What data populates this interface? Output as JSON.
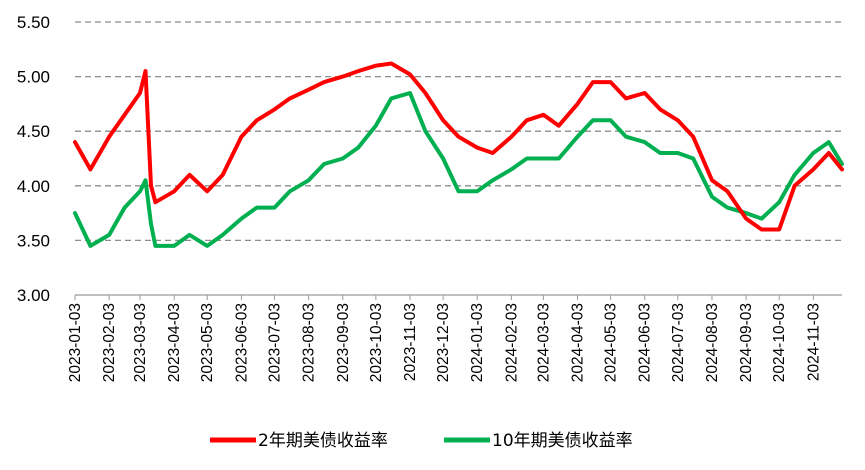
{
  "chart_data": {
    "type": "line",
    "title": "",
    "xlabel": "",
    "ylabel": "",
    "ylim": [
      3.0,
      5.5
    ],
    "y_ticks": [
      "3.00",
      "3.50",
      "4.00",
      "4.50",
      "5.00",
      "5.50"
    ],
    "grid": "horizontal dashed",
    "legend_position": "bottom",
    "x": [
      "2023-01-03",
      "2023-01-17",
      "2023-02-03",
      "2023-02-17",
      "2023-03-03",
      "2023-03-08",
      "2023-03-13",
      "2023-03-17",
      "2023-04-03",
      "2023-04-17",
      "2023-05-03",
      "2023-05-17",
      "2023-06-03",
      "2023-06-17",
      "2023-07-03",
      "2023-07-17",
      "2023-08-03",
      "2023-08-17",
      "2023-09-03",
      "2023-09-17",
      "2023-10-03",
      "2023-10-17",
      "2023-11-03",
      "2023-11-17",
      "2023-12-03",
      "2023-12-17",
      "2024-01-03",
      "2024-01-17",
      "2024-02-03",
      "2024-02-17",
      "2024-03-03",
      "2024-03-17",
      "2024-04-03",
      "2024-04-17",
      "2024-05-03",
      "2024-05-17",
      "2024-06-03",
      "2024-06-17",
      "2024-07-03",
      "2024-07-17",
      "2024-08-03",
      "2024-08-17",
      "2024-09-03",
      "2024-09-17",
      "2024-10-03",
      "2024-10-17",
      "2024-11-03",
      "2024-11-17",
      "2024-11-29"
    ],
    "x_tick_labels": [
      "2023-01-03",
      "2023-02-03",
      "2023-03-03",
      "2023-04-03",
      "2023-05-03",
      "2023-06-03",
      "2023-07-03",
      "2023-08-03",
      "2023-09-03",
      "2023-10-03",
      "2023-11-03",
      "2023-12-03",
      "2024-01-03",
      "2024-02-03",
      "2024-03-03",
      "2024-04-03",
      "2024-05-03",
      "2024-06-03",
      "2024-07-03",
      "2024-08-03",
      "2024-09-03",
      "2024-10-03",
      "2024-11-03"
    ],
    "series": [
      {
        "name": "2年期美债收益率",
        "color": "#ff0000",
        "values": [
          4.4,
          4.15,
          4.45,
          4.65,
          4.85,
          5.05,
          4.0,
          3.85,
          3.95,
          4.1,
          3.95,
          4.1,
          4.45,
          4.6,
          4.7,
          4.8,
          4.88,
          4.95,
          5.0,
          5.05,
          5.1,
          5.12,
          5.02,
          4.85,
          4.6,
          4.45,
          4.35,
          4.3,
          4.45,
          4.6,
          4.65,
          4.55,
          4.75,
          4.95,
          4.95,
          4.8,
          4.85,
          4.7,
          4.6,
          4.45,
          4.05,
          3.95,
          3.7,
          3.6,
          3.6,
          4.0,
          4.15,
          4.3,
          4.15
        ]
      },
      {
        "name": "10年期美债收益率",
        "color": "#00b050",
        "values": [
          3.75,
          3.45,
          3.55,
          3.8,
          3.95,
          4.05,
          3.65,
          3.45,
          3.45,
          3.55,
          3.45,
          3.55,
          3.7,
          3.8,
          3.8,
          3.95,
          4.05,
          4.2,
          4.25,
          4.35,
          4.55,
          4.8,
          4.85,
          4.5,
          4.25,
          3.95,
          3.95,
          4.05,
          4.15,
          4.25,
          4.25,
          4.25,
          4.45,
          4.6,
          4.6,
          4.45,
          4.4,
          4.3,
          4.3,
          4.25,
          3.9,
          3.8,
          3.75,
          3.7,
          3.85,
          4.1,
          4.3,
          4.4,
          4.2
        ]
      }
    ]
  }
}
